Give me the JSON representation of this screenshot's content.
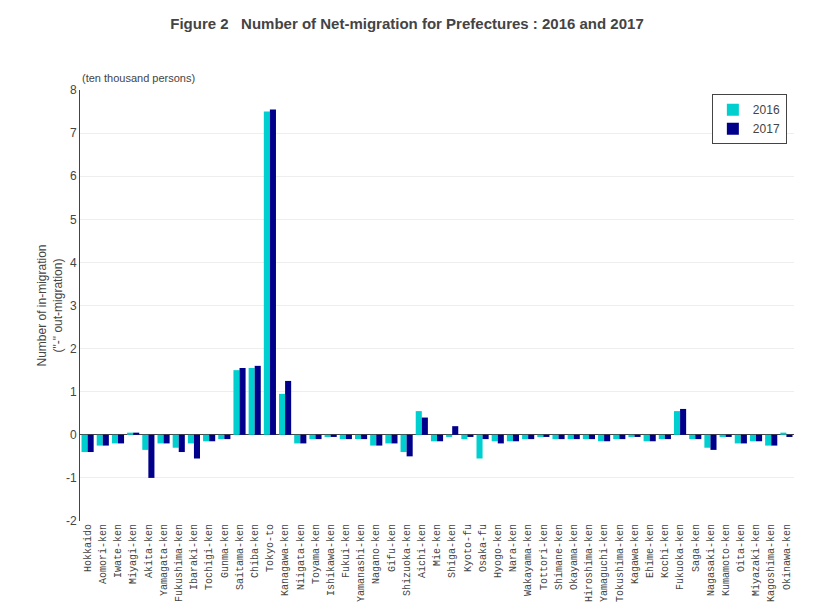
{
  "chart_data": {
    "type": "bar",
    "title": "Figure 2   Number of Net-migration for Prefectures : 2016 and 2017",
    "subtitle": "(ten thousand persons)",
    "ylabel": "Number of in-migration\n(\"-\" out-migration)",
    "ylim": [
      -2,
      8
    ],
    "yticks": [
      -2,
      -1,
      0,
      1,
      2,
      3,
      4,
      5,
      6,
      7,
      8
    ],
    "grid": true,
    "legend": "upper right",
    "categories": [
      "Hokkaido",
      "Aomori-ken",
      "Iwate-ken",
      "Miyagi-ken",
      "Akita-ken",
      "Yamagata-ken",
      "Fukushima-ken",
      "Ibaraki-ken",
      "Tochigi-ken",
      "Gunma-ken",
      "Saitama-ken",
      "Chiba-ken",
      "Tokyo-to",
      "Kanagawa-ken",
      "Niigata-ken",
      "Toyama-ken",
      "Ishikawa-ken",
      "Fukui-ken",
      "Yamanashi-ken",
      "Nagano-ken",
      "Gifu-ken",
      "Shizuoka-ken",
      "Aichi-ken",
      "Mie-ken",
      "Shiga-ken",
      "Kyoto-fu",
      "Osaka-fu",
      "Hyogo-ken",
      "Nara-ken",
      "Wakayama-ken",
      "Tottori-ken",
      "Shimane-ken",
      "Okayama-ken",
      "Hiroshima-ken",
      "Yamaguchi-ken",
      "Tokushima-ken",
      "Kagawa-ken",
      "Ehime-ken",
      "Kochi-ken",
      "Fukuoka-ken",
      "Saga-ken",
      "Nagasaki-ken",
      "Kumamoto-ken",
      "Oita-ken",
      "Miyazaki-ken",
      "Kagoshima-ken",
      "Okinawa-ken"
    ],
    "series": [
      {
        "name": "2016",
        "color": "#00CFCF",
        "values": [
          -0.4,
          -0.25,
          -0.2,
          0.05,
          -0.35,
          -0.2,
          -0.3,
          -0.2,
          -0.15,
          -0.1,
          1.5,
          1.55,
          7.5,
          0.95,
          -0.2,
          -0.1,
          -0.05,
          -0.1,
          -0.1,
          -0.25,
          -0.2,
          -0.4,
          0.55,
          -0.15,
          -0.05,
          -0.1,
          -0.55,
          -0.15,
          -0.15,
          -0.1,
          -0.05,
          -0.1,
          -0.1,
          -0.1,
          -0.15,
          -0.1,
          -0.05,
          -0.15,
          -0.1,
          0.55,
          -0.1,
          -0.3,
          -0.05,
          -0.2,
          -0.15,
          -0.25,
          0.05
        ]
      },
      {
        "name": "2017",
        "color": "#00008B",
        "values": [
          -0.4,
          -0.25,
          -0.2,
          0.05,
          -1.0,
          -0.2,
          -0.4,
          -0.55,
          -0.15,
          -0.1,
          1.55,
          1.6,
          7.55,
          1.25,
          -0.2,
          -0.1,
          -0.05,
          -0.1,
          -0.1,
          -0.25,
          -0.2,
          -0.5,
          0.4,
          -0.15,
          0.2,
          -0.05,
          -0.1,
          -0.2,
          -0.15,
          -0.1,
          -0.05,
          -0.1,
          -0.1,
          -0.1,
          -0.15,
          -0.1,
          -0.05,
          -0.15,
          -0.1,
          0.6,
          -0.1,
          -0.35,
          -0.05,
          -0.2,
          -0.15,
          -0.25,
          -0.05
        ]
      }
    ]
  }
}
